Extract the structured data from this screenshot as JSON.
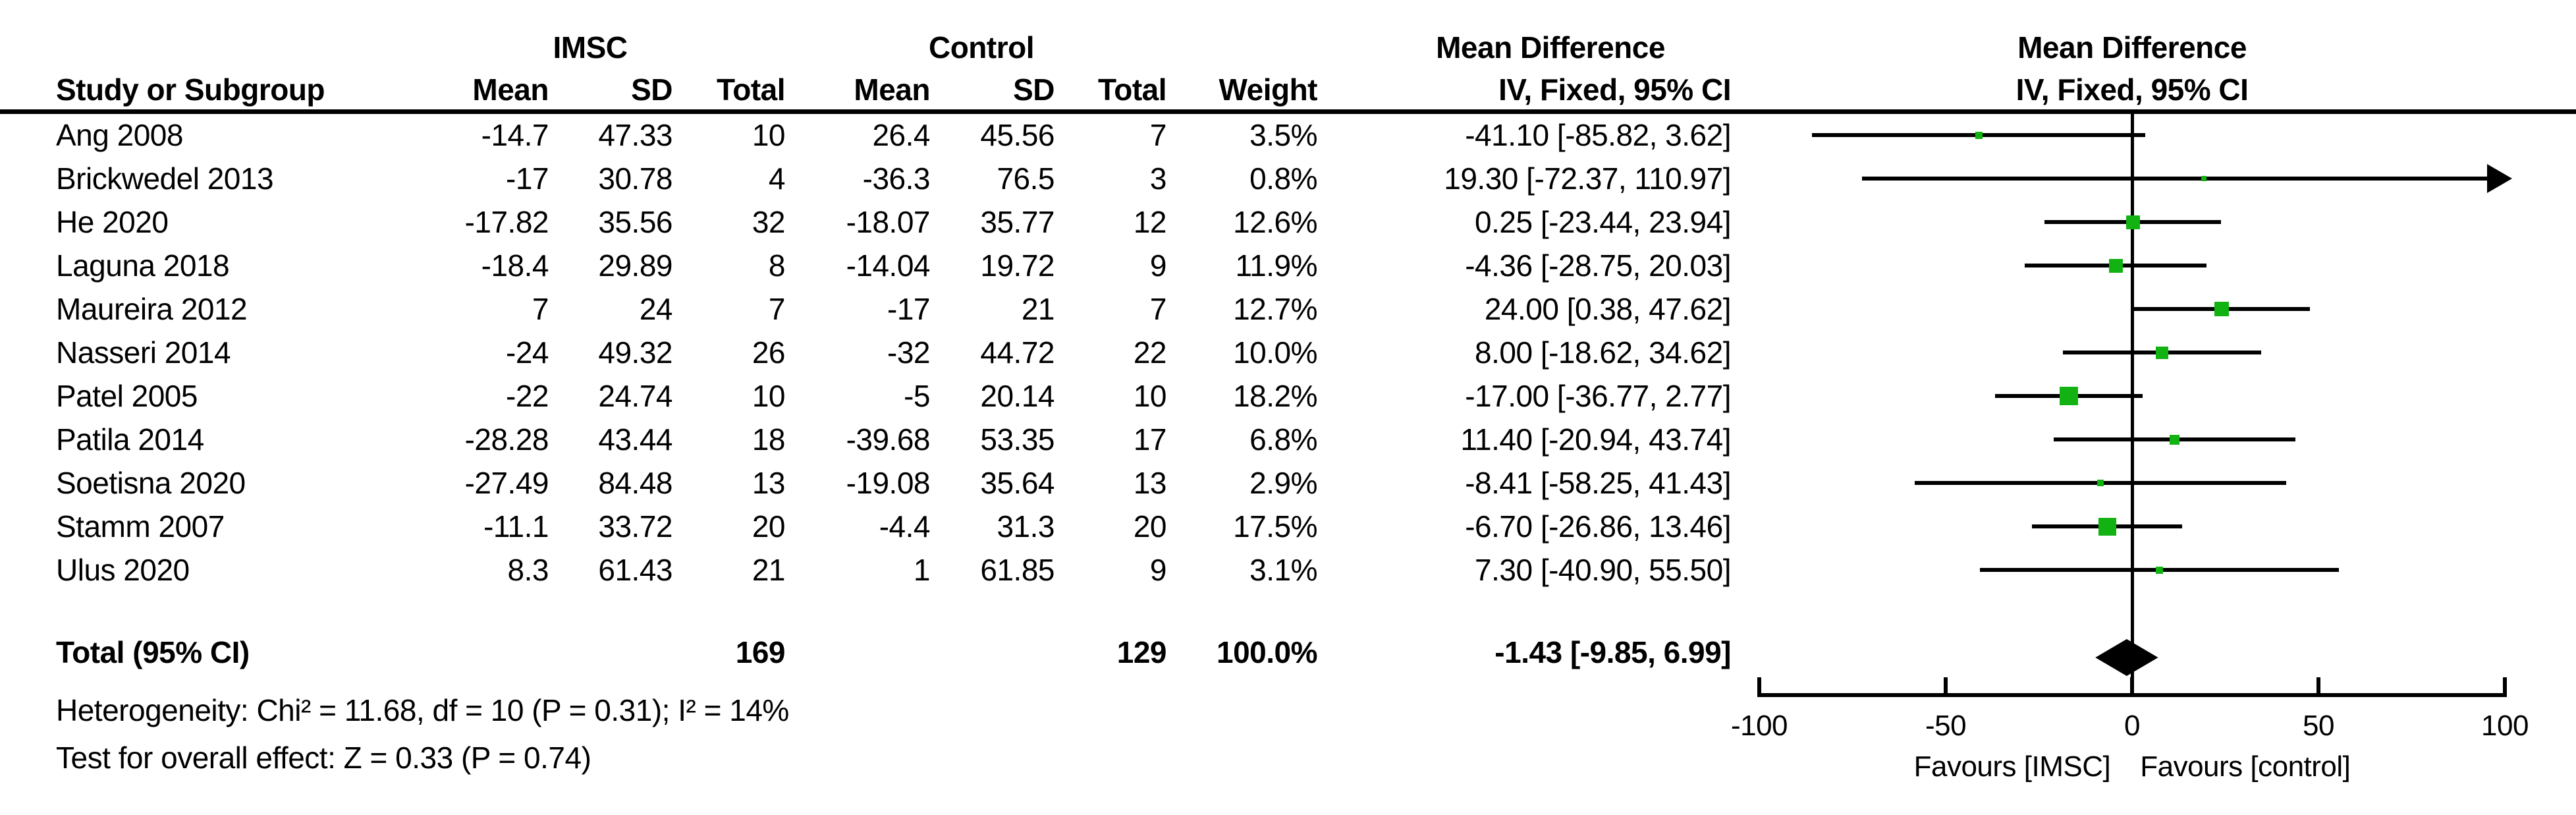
{
  "colors": {
    "marker_green": "#12B212",
    "ink": "#000000",
    "background": "#FFFFFF"
  },
  "header": {
    "group_imsc": "IMSC",
    "group_control": "Control",
    "group_md_table": "Mean Difference",
    "group_md_plot": "Mean Difference",
    "col_study": "Study or Subgroup",
    "col_mean1": "Mean",
    "col_sd1": "SD",
    "col_total1": "Total",
    "col_mean2": "Mean",
    "col_sd2": "SD",
    "col_total2": "Total",
    "col_weight": "Weight",
    "col_ci_table": "IV, Fixed, 95% CI",
    "col_ci_plot": "IV, Fixed, 95% CI"
  },
  "total_row": {
    "label": "Total (95% CI)",
    "imsc_total": "169",
    "control_total": "129",
    "weight": "100.0%",
    "ci_text": "-1.43 [-9.85, 6.99]"
  },
  "footnotes": {
    "heterogeneity": "Heterogeneity: Chi² = 11.68, df = 10 (P = 0.31); I² = 14%",
    "overall_effect": "Test for overall effect: Z = 0.33 (P = 0.74)"
  },
  "axis": {
    "tick_labels": [
      "-100",
      "-50",
      "0",
      "50",
      "100"
    ],
    "favours_left": "Favours [IMSC]",
    "favours_right": "Favours [control]"
  },
  "chart_data": {
    "type": "forest",
    "effect_measure": "Mean Difference, IV, Fixed, 95% CI",
    "x_axis": {
      "min": -100,
      "max": 100,
      "ticks": [
        -100,
        -50,
        0,
        50,
        100
      ]
    },
    "studies": [
      {
        "name": "Ang 2008",
        "imsc_mean": "-14.7",
        "imsc_sd": "47.33",
        "imsc_total": "10",
        "control_mean": "26.4",
        "control_sd": "45.56",
        "control_total": "7",
        "weight": "3.5%",
        "weight_pct": 3.5,
        "md": -41.1,
        "ci_low": -85.82,
        "ci_high": 3.62,
        "ci_text": "-41.10 [-85.82, 3.62]"
      },
      {
        "name": "Brickwedel 2013",
        "imsc_mean": "-17",
        "imsc_sd": "30.78",
        "imsc_total": "4",
        "control_mean": "-36.3",
        "control_sd": "76.5",
        "control_total": "3",
        "weight": "0.8%",
        "weight_pct": 0.8,
        "md": 19.3,
        "ci_low": -72.37,
        "ci_high": 110.97,
        "ci_text": "19.30 [-72.37, 110.97]"
      },
      {
        "name": "He 2020",
        "imsc_mean": "-17.82",
        "imsc_sd": "35.56",
        "imsc_total": "32",
        "control_mean": "-18.07",
        "control_sd": "35.77",
        "control_total": "12",
        "weight": "12.6%",
        "weight_pct": 12.6,
        "md": 0.25,
        "ci_low": -23.44,
        "ci_high": 23.94,
        "ci_text": "0.25 [-23.44, 23.94]"
      },
      {
        "name": "Laguna 2018",
        "imsc_mean": "-18.4",
        "imsc_sd": "29.89",
        "imsc_total": "8",
        "control_mean": "-14.04",
        "control_sd": "19.72",
        "control_total": "9",
        "weight": "11.9%",
        "weight_pct": 11.9,
        "md": -4.36,
        "ci_low": -28.75,
        "ci_high": 20.03,
        "ci_text": "-4.36 [-28.75, 20.03]"
      },
      {
        "name": "Maureira 2012",
        "imsc_mean": "7",
        "imsc_sd": "24",
        "imsc_total": "7",
        "control_mean": "-17",
        "control_sd": "21",
        "control_total": "7",
        "weight": "12.7%",
        "weight_pct": 12.7,
        "md": 24.0,
        "ci_low": 0.38,
        "ci_high": 47.62,
        "ci_text": "24.00 [0.38, 47.62]"
      },
      {
        "name": "Nasseri 2014",
        "imsc_mean": "-24",
        "imsc_sd": "49.32",
        "imsc_total": "26",
        "control_mean": "-32",
        "control_sd": "44.72",
        "control_total": "22",
        "weight": "10.0%",
        "weight_pct": 10.0,
        "md": 8.0,
        "ci_low": -18.62,
        "ci_high": 34.62,
        "ci_text": "8.00 [-18.62, 34.62]"
      },
      {
        "name": "Patel 2005",
        "imsc_mean": "-22",
        "imsc_sd": "24.74",
        "imsc_total": "10",
        "control_mean": "-5",
        "control_sd": "20.14",
        "control_total": "10",
        "weight": "18.2%",
        "weight_pct": 18.2,
        "md": -17.0,
        "ci_low": -36.77,
        "ci_high": 2.77,
        "ci_text": "-17.00 [-36.77, 2.77]"
      },
      {
        "name": "Patila 2014",
        "imsc_mean": "-28.28",
        "imsc_sd": "43.44",
        "imsc_total": "18",
        "control_mean": "-39.68",
        "control_sd": "53.35",
        "control_total": "17",
        "weight": "6.8%",
        "weight_pct": 6.8,
        "md": 11.4,
        "ci_low": -20.94,
        "ci_high": 43.74,
        "ci_text": "11.40 [-20.94, 43.74]"
      },
      {
        "name": "Soetisna 2020",
        "imsc_mean": "-27.49",
        "imsc_sd": "84.48",
        "imsc_total": "13",
        "control_mean": "-19.08",
        "control_sd": "35.64",
        "control_total": "13",
        "weight": "2.9%",
        "weight_pct": 2.9,
        "md": -8.41,
        "ci_low": -58.25,
        "ci_high": 41.43,
        "ci_text": "-8.41 [-58.25, 41.43]"
      },
      {
        "name": "Stamm 2007",
        "imsc_mean": "-11.1",
        "imsc_sd": "33.72",
        "imsc_total": "20",
        "control_mean": "-4.4",
        "control_sd": "31.3",
        "control_total": "20",
        "weight": "17.5%",
        "weight_pct": 17.5,
        "md": -6.7,
        "ci_low": -26.86,
        "ci_high": 13.46,
        "ci_text": "-6.70 [-26.86, 13.46]"
      },
      {
        "name": "Ulus 2020",
        "imsc_mean": "8.3",
        "imsc_sd": "61.43",
        "imsc_total": "21",
        "control_mean": "1",
        "control_sd": "61.85",
        "control_total": "9",
        "weight": "3.1%",
        "weight_pct": 3.1,
        "md": 7.3,
        "ci_low": -40.9,
        "ci_high": 55.5,
        "ci_text": "7.30 [-40.90, 55.50]"
      }
    ],
    "total": {
      "md": -1.43,
      "ci_low": -9.85,
      "ci_high": 6.99,
      "weight_pct": 100.0
    }
  }
}
